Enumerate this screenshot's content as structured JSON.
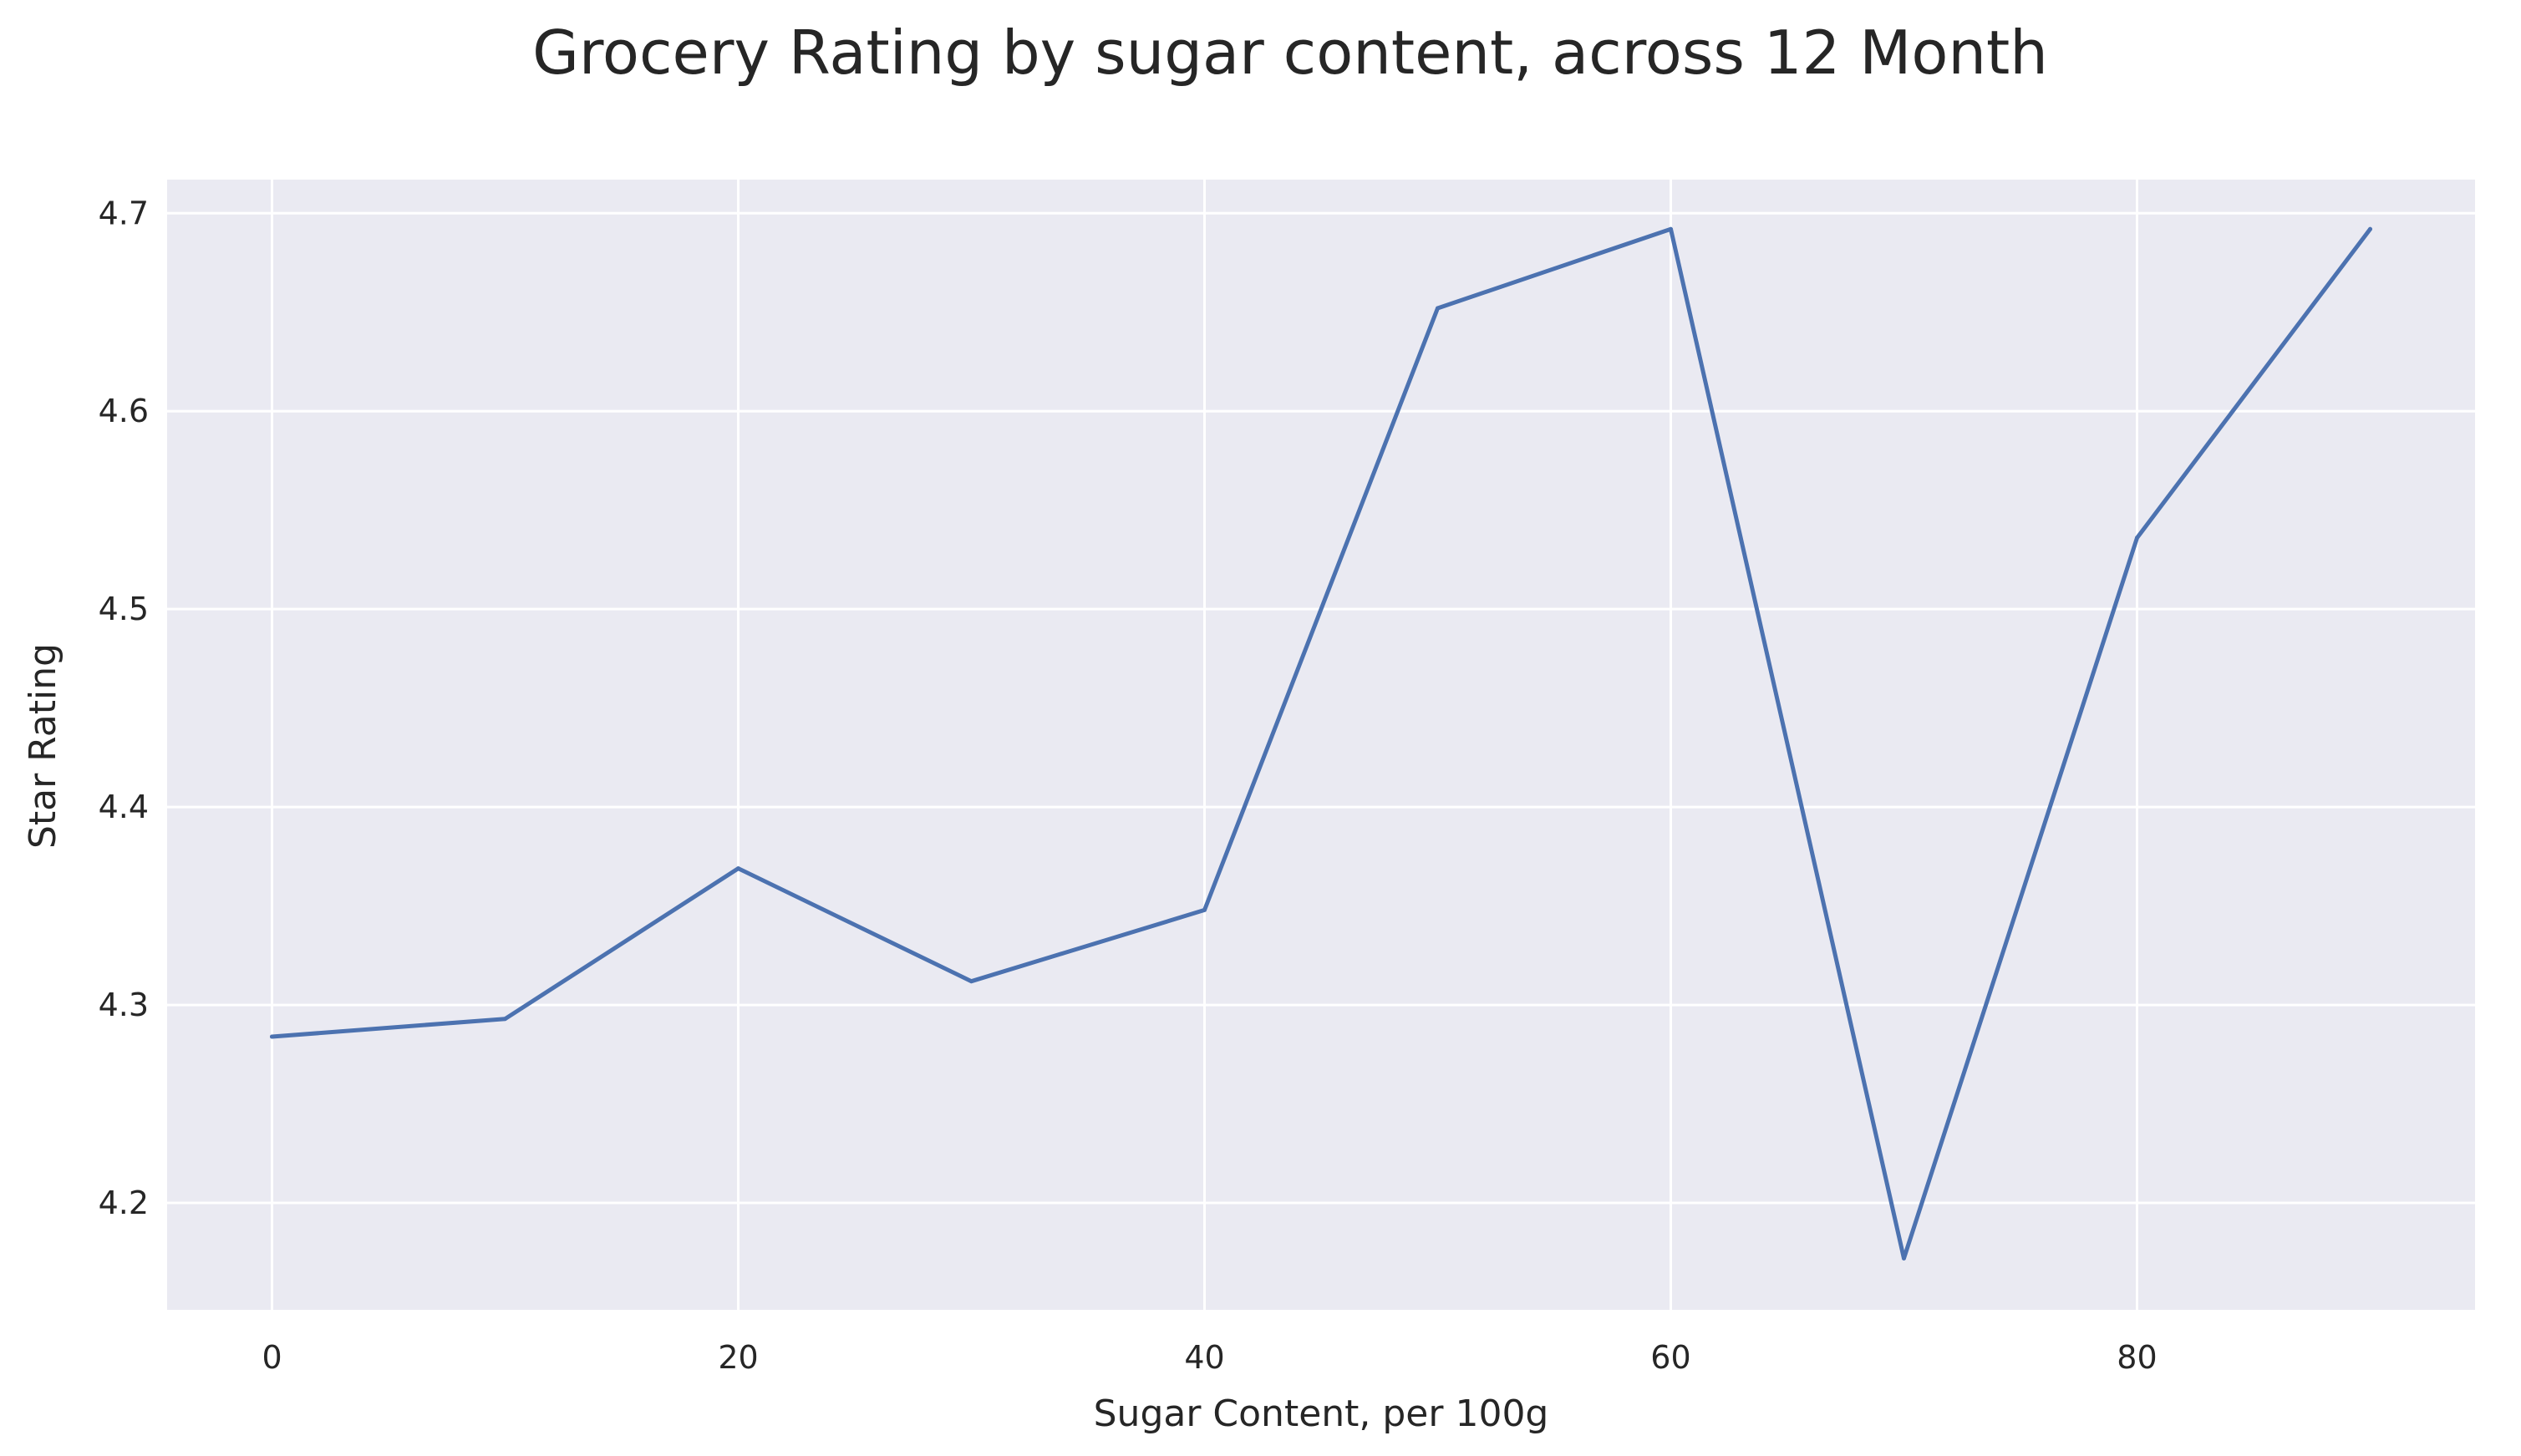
{
  "chart_data": {
    "type": "line",
    "title": "Grocery Rating by sugar content, across 12 Month",
    "xlabel": "Sugar Content, per 100g",
    "ylabel": "Star Rating",
    "xlim": [
      -4.5,
      94.5
    ],
    "ylim": [
      4.146,
      4.717
    ],
    "xticks": [
      0,
      20,
      40,
      60,
      80
    ],
    "xtick_labels": [
      "0",
      "20",
      "40",
      "60",
      "80"
    ],
    "yticks": [
      4.2,
      4.3,
      4.4,
      4.5,
      4.6,
      4.7
    ],
    "ytick_labels": [
      "4.2",
      "4.3",
      "4.4",
      "4.5",
      "4.6",
      "4.7"
    ],
    "grid": true,
    "series": [
      {
        "x": [
          0,
          10,
          20,
          30,
          40,
          50,
          60,
          70,
          80,
          90
        ],
        "values": [
          4.284,
          4.293,
          4.369,
          4.312,
          4.348,
          4.652,
          4.692,
          4.172,
          4.536,
          4.692
        ]
      }
    ]
  },
  "colors": {
    "plot_background": "#eaeaf2",
    "grid": "#ffffff",
    "line": "#4c72b0",
    "text": "#262626"
  }
}
